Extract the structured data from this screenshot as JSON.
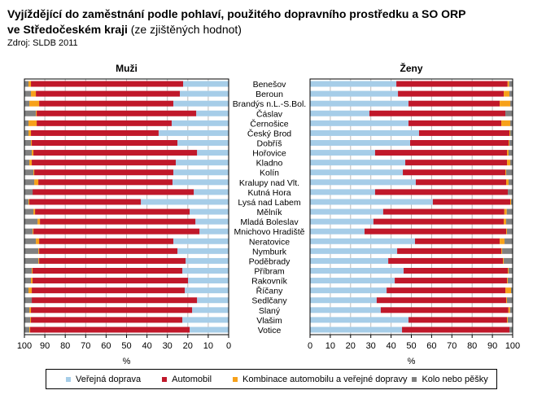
{
  "title": {
    "line1": "Vyjíždějící do zaměstnání podle pohlaví, použitého dopravního prostředku a SO ORP",
    "line2_bold": "ve Středočeském kraji",
    "line2_light": " (ze zjištěných hodnot)",
    "source": "Zdroj: SLDB 2011"
  },
  "chart_data": {
    "type": "bar",
    "orientation": "horizontal",
    "stacked": true,
    "title": "Vyjíždějící do zaměstnání podle pohlaví, použitého dopravního prostředku a SO ORP ve Středočeském kraji (ze zjištěných hodnot)",
    "categories": [
      "Benešov",
      "Beroun",
      "Brandýs n.L.-S.Bol.",
      "Čáslav",
      "Černošice",
      "Český  Brod",
      "Dobříš",
      "Hořovice",
      "Kladno",
      "Kolín",
      "Kralupy nad Vlt.",
      "Kutná Hora",
      "Lysá  nad Labem",
      "Mělník",
      "Mladá Boleslav",
      "Mnichovo Hradiště",
      "Neratovice",
      "Nymburk",
      "Poděbrady",
      "Příbram",
      "Rakovník",
      "Říčany",
      "Sedlčany",
      "Slaný",
      "Vlašim",
      "Votice"
    ],
    "series_names": [
      "Veřejná doprava",
      "Automobil",
      "Kombinace automobilu a veřejné dopravy",
      "Kolo nebo pěšky"
    ],
    "series_colors": [
      "#a6cde8",
      "#c0182a",
      "#f7a11a",
      "#808080"
    ],
    "panels": [
      {
        "title": "Muži",
        "xlabel": "%",
        "xlim": [
          100,
          0
        ],
        "xticks": [
          100,
          90,
          80,
          70,
          60,
          50,
          40,
          30,
          20,
          10,
          0
        ],
        "grid": true,
        "series": [
          {
            "name": "Veřejná doprava",
            "values": [
              22.3,
              23.9,
              27.1,
              15.9,
              27.9,
              34.3,
              25.1,
              15.5,
              25.9,
              27.1,
              27.5,
              17.1,
              43.0,
              19.1,
              16.3,
              14.3,
              27.1,
              25.1,
              21.1,
              22.7,
              19.9,
              21.5,
              15.5,
              17.9,
              22.7,
              19.1
            ]
          },
          {
            "name": "Automobil",
            "values": [
              74.5,
              70.5,
              65.7,
              78.1,
              66.1,
              62.5,
              71.3,
              80.1,
              70.5,
              68.1,
              65.7,
              78.9,
              54.6,
              75.7,
              76.1,
              81.3,
              65.7,
              67.7,
              71.7,
              73.3,
              76.1,
              74.9,
              80.9,
              78.9,
              74.1,
              78.1
            ]
          },
          {
            "name": "Kombinace automobilu a veřejné dopravy",
            "values": [
              1.2,
              2.4,
              4.8,
              0.4,
              4.0,
              1.2,
              0.4,
              0.8,
              1.2,
              0.4,
              2.0,
              0.0,
              0.4,
              0.8,
              1.2,
              0.4,
              1.6,
              0.4,
              0.4,
              0.4,
              0.8,
              1.6,
              0.0,
              0.8,
              0.4,
              0.4
            ]
          },
          {
            "name": "Kolo nebo pěšky",
            "values": [
              2.0,
              3.2,
              2.4,
              5.6,
              2.0,
              2.0,
              3.2,
              3.6,
              2.4,
              4.4,
              4.8,
              4.0,
              2.0,
              4.4,
              6.4,
              4.0,
              5.6,
              6.8,
              6.8,
              3.6,
              3.2,
              2.0,
              3.6,
              2.4,
              2.8,
              2.4
            ]
          }
        ]
      },
      {
        "title": "Ženy",
        "xlabel": "%",
        "xlim": [
          0,
          100
        ],
        "xticks": [
          0,
          10,
          20,
          30,
          40,
          50,
          60,
          70,
          80,
          90,
          100
        ],
        "grid": true,
        "series": [
          {
            "name": "Veřejná doprava",
            "values": [
              42.6,
              43.4,
              48.6,
              29.3,
              48.6,
              53.8,
              49.4,
              32.1,
              47.0,
              45.8,
              52.2,
              32.1,
              60.6,
              36.1,
              31.3,
              26.9,
              51.8,
              43.0,
              38.6,
              46.2,
              41.8,
              37.8,
              32.9,
              34.9,
              48.6,
              45.4
            ]
          },
          {
            "name": "Automobil",
            "values": [
              54.9,
              52.2,
              45.0,
              67.1,
              45.8,
              44.6,
              48.6,
              65.1,
              50.2,
              50.6,
              44.6,
              65.5,
              38.2,
              59.8,
              64.3,
              69.9,
              41.8,
              51.4,
              56.6,
              51.4,
              55.4,
              58.6,
              63.9,
              63.0,
              48.6,
              53.0
            ]
          },
          {
            "name": "Kombinace automobilu a veřejné dopravy",
            "values": [
              0.8,
              2.8,
              5.2,
              0.0,
              4.4,
              0.4,
              0.4,
              0.8,
              1.6,
              0.4,
              1.2,
              0.0,
              0.4,
              1.2,
              1.2,
              0.4,
              2.4,
              0.4,
              0.4,
              0.4,
              0.4,
              2.8,
              0.4,
              0.8,
              0.4,
              0.0
            ]
          },
          {
            "name": "Kolo nebo pěšky",
            "values": [
              1.6,
              1.6,
              1.2,
              3.6,
              1.2,
              1.2,
              1.6,
              2.0,
              1.2,
              3.2,
              2.0,
              2.4,
              0.8,
              2.8,
              3.2,
              2.8,
              4.0,
              5.2,
              4.4,
              2.0,
              2.4,
              0.8,
              2.8,
              1.2,
              2.4,
              1.6
            ]
          }
        ]
      }
    ],
    "legend": {
      "position": "bottom"
    }
  }
}
